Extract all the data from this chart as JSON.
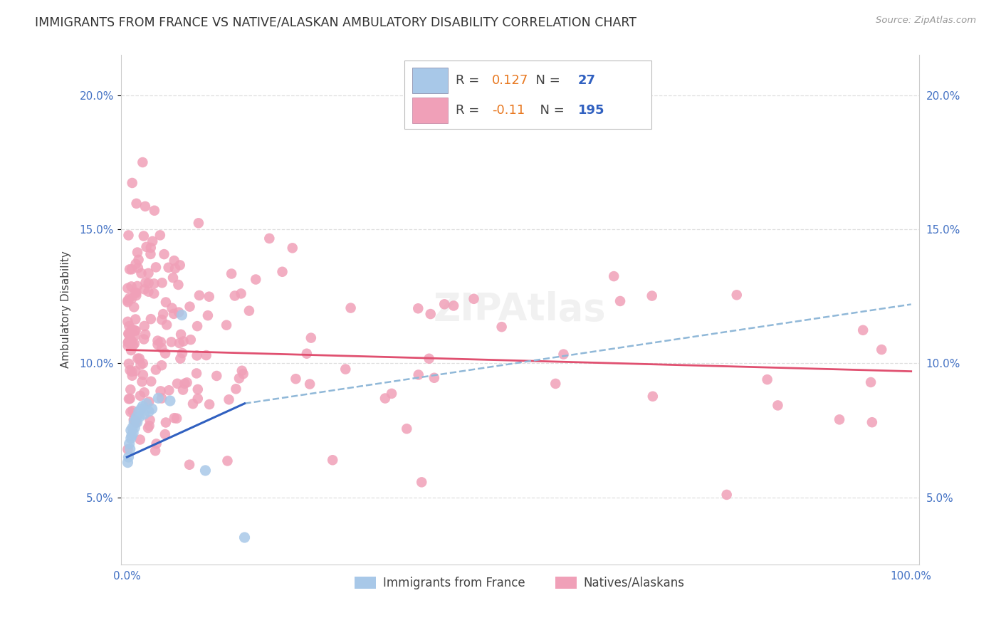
{
  "title": "IMMIGRANTS FROM FRANCE VS NATIVE/ALASKAN AMBULATORY DISABILITY CORRELATION CHART",
  "source": "Source: ZipAtlas.com",
  "ylabel": "Ambulatory Disability",
  "blue_R": 0.127,
  "blue_N": 27,
  "pink_R": -0.11,
  "pink_N": 195,
  "blue_color": "#a8c8e8",
  "pink_color": "#f0a0b8",
  "blue_line_color": "#3060c0",
  "pink_line_color": "#e05070",
  "dashed_line_color": "#90b8d8",
  "legend_R_color": "#e87820",
  "legend_N_color": "#3060c0",
  "background_color": "#ffffff",
  "grid_color": "#d8d8d8",
  "yticks": [
    0.05,
    0.1,
    0.15,
    0.2
  ],
  "ytick_labels": [
    "5.0%",
    "10.0%",
    "15.0%",
    "20.0%"
  ],
  "xtick_labels": [
    "0.0%",
    "",
    "",
    "",
    "100.0%"
  ]
}
